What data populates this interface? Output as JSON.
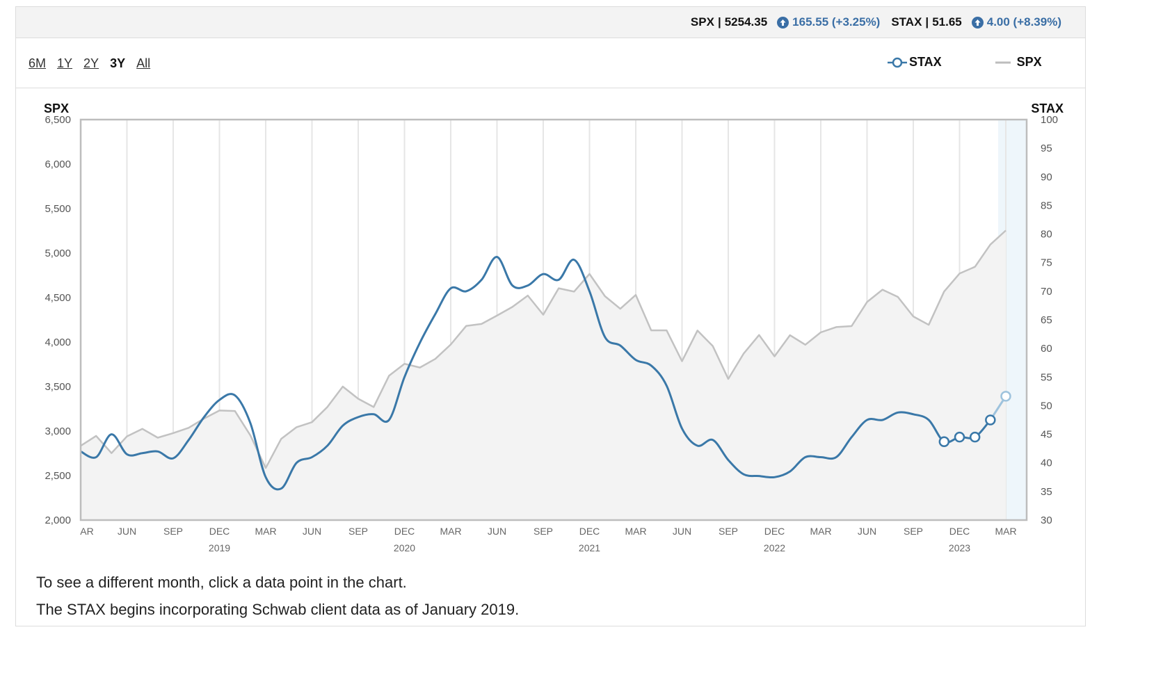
{
  "ticker": {
    "spx_name": "SPX",
    "spx_value": "5254.35",
    "spx_change": "165.55 (+3.25%)",
    "stax_name": "STAX",
    "stax_value": "51.65",
    "stax_change": "4.00 (+8.39%)",
    "separator": "|",
    "change_color": "#3a6ea5"
  },
  "ranges": [
    {
      "label": "6M",
      "active": false
    },
    {
      "label": "1Y",
      "active": false
    },
    {
      "label": "2Y",
      "active": false
    },
    {
      "label": "3Y",
      "active": true
    },
    {
      "label": "All",
      "active": false
    }
  ],
  "legend": {
    "stax_label": "STAX",
    "spx_label": "SPX",
    "stax_color": "#3a78a8",
    "spx_color": "#bdbdbd"
  },
  "notes": {
    "line1": "To see a different month, click a data point in the chart.",
    "line2": "The STAX begins incorporating Schwab client data as of January 2019."
  },
  "chart_data": {
    "type": "line",
    "title": "",
    "left_axis": {
      "label": "SPX",
      "range": [
        2000,
        6500
      ],
      "ticks": [
        2000,
        2500,
        3000,
        3500,
        4000,
        4500,
        5000,
        5500,
        6000,
        6500
      ],
      "tick_labels": [
        "2,000",
        "2,500",
        "3,000",
        "3,500",
        "4,000",
        "4,500",
        "5,000",
        "5,500",
        "6,000",
        "6,500"
      ]
    },
    "right_axis": {
      "label": "STAX",
      "range": [
        30,
        100
      ],
      "ticks": [
        30,
        35,
        40,
        45,
        50,
        55,
        60,
        65,
        70,
        75,
        80,
        85,
        90,
        95,
        100
      ],
      "tick_labels": [
        "30",
        "35",
        "40",
        "45",
        "50",
        "55",
        "60",
        "65",
        "70",
        "75",
        "80",
        "85",
        "90",
        "95",
        "100"
      ]
    },
    "x_ticks": [
      "AR",
      "JUN",
      "SEP",
      "DEC",
      "MAR",
      "JUN",
      "SEP",
      "DEC",
      "MAR",
      "JUN",
      "SEP",
      "DEC",
      "MAR",
      "JUN",
      "SEP",
      "DEC",
      "MAR",
      "JUN",
      "SEP",
      "DEC",
      "MAR"
    ],
    "year_labels": [
      {
        "label": "2019",
        "month_index": 9
      },
      {
        "label": "2020",
        "month_index": 21
      },
      {
        "label": "2021",
        "month_index": 33
      },
      {
        "label": "2022",
        "month_index": 45
      },
      {
        "label": "2023",
        "month_index": 57
      }
    ],
    "months": [
      "Mar",
      "Apr",
      "May",
      "Jun",
      "Jul",
      "Aug",
      "Sep",
      "Oct",
      "Nov",
      "Dec",
      "Jan",
      "Feb",
      "Mar",
      "Apr",
      "May",
      "Jun",
      "Jul",
      "Aug",
      "Sep",
      "Oct",
      "Nov",
      "Dec",
      "Jan",
      "Feb",
      "Mar",
      "Apr",
      "May",
      "Jun",
      "Jul",
      "Aug",
      "Sep",
      "Oct",
      "Nov",
      "Dec",
      "Jan",
      "Feb",
      "Mar",
      "Apr",
      "May",
      "Jun",
      "Jul",
      "Aug",
      "Sep",
      "Oct",
      "Nov",
      "Dec",
      "Jan",
      "Feb",
      "Mar",
      "Apr",
      "May",
      "Jun",
      "Jul",
      "Aug",
      "Sep",
      "Oct",
      "Nov",
      "Dec",
      "Jan",
      "Feb",
      "Mar"
    ],
    "series": [
      {
        "name": "SPX",
        "axis": "left",
        "values": [
          2834,
          2946,
          2752,
          2941,
          3025,
          2926,
          2977,
          3037,
          3141,
          3231,
          3226,
          2954,
          2585,
          2912,
          3044,
          3100,
          3271,
          3500,
          3363,
          3270,
          3622,
          3756,
          3714,
          3811,
          3973,
          4181,
          4204,
          4298,
          4395,
          4523,
          4308,
          4605,
          4567,
          4766,
          4516,
          4374,
          4530,
          4132,
          4132,
          3785,
          4130,
          3955,
          3586,
          3872,
          4080,
          3840,
          4077,
          3970,
          4109,
          4169,
          4180,
          4450,
          4589,
          4508,
          4288,
          4194,
          4568,
          4770,
          4846,
          5096,
          5254
        ]
      },
      {
        "name": "STAX",
        "axis": "right",
        "values": [
          42,
          41,
          45,
          41.5,
          41.7,
          42,
          40.8,
          44,
          48,
          51,
          51.8,
          47,
          37.5,
          35.5,
          40,
          41,
          43,
          46.5,
          48,
          48.5,
          47.5,
          55,
          61,
          66,
          70.5,
          70,
          72,
          76,
          71,
          71,
          73,
          72,
          75.5,
          70,
          62,
          60.5,
          58,
          57,
          53.5,
          46,
          43,
          44,
          40.5,
          38,
          37.7,
          37.5,
          38.5,
          41,
          41,
          41,
          44.5,
          47.5,
          47.5,
          48.8,
          48.5,
          47.5,
          43.7,
          44.5,
          44.5,
          47.5,
          51.65
        ]
      }
    ],
    "highlighted_points": {
      "series": "STAX",
      "from_index": 56
    },
    "grid": "vertical",
    "legend_position": "top-right"
  }
}
